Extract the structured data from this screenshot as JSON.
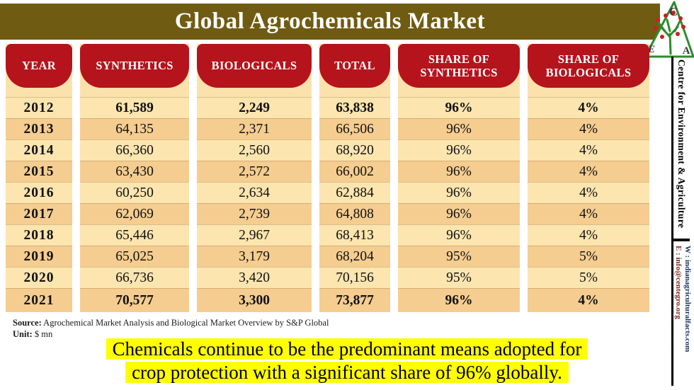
{
  "title": "Global Agrochemicals Market",
  "logo": {
    "letters": [
      "C",
      "E",
      "A"
    ]
  },
  "sidebar": {
    "org": "Centre for Environment & Agriculture",
    "email": "E : info@centegro.org",
    "web": "W : indianagriculturalfacts.com"
  },
  "chart_data": {
    "type": "table",
    "title": "Global Agrochemicals Market",
    "unit": "$ mn",
    "columns": [
      "YEAR",
      "SYNTHETICS",
      "BIOLOGICALS",
      "TOTAL",
      "SHARE OF SYNTHETICS",
      "SHARE OF BIOLOGICALS"
    ],
    "rows": [
      [
        "2012",
        "61,589",
        "2,249",
        "63,838",
        "96%",
        "4%"
      ],
      [
        "2013",
        "64,135",
        "2,371",
        "66,506",
        "96%",
        "4%"
      ],
      [
        "2014",
        "66,360",
        "2,560",
        "68,920",
        "96%",
        "4%"
      ],
      [
        "2015",
        "63,430",
        "2,572",
        "66,002",
        "96%",
        "4%"
      ],
      [
        "2016",
        "60,250",
        "2,634",
        "62,884",
        "96%",
        "4%"
      ],
      [
        "2017",
        "62,069",
        "2,739",
        "64,808",
        "96%",
        "4%"
      ],
      [
        "2018",
        "65,446",
        "2,967",
        "68,413",
        "96%",
        "4%"
      ],
      [
        "2019",
        "65,025",
        "3,179",
        "68,204",
        "95%",
        "5%"
      ],
      [
        "2020",
        "66,736",
        "3,420",
        "70,156",
        "95%",
        "5%"
      ],
      [
        "2021",
        "70,577",
        "3,300",
        "73,877",
        "96%",
        "4%"
      ]
    ],
    "bold_row_indices": [
      0,
      9
    ]
  },
  "source": {
    "label": "Source:",
    "text": " Agrochemical Market Analysis and Biological Market Overview by S&P Global",
    "unit_label": "Unit:",
    "unit_text": " $ mn"
  },
  "note": {
    "lines": [
      "Chemicals continue to be the predominant means adopted for",
      "crop protection with a significant share of 96% globally."
    ]
  },
  "colors": {
    "title_bar": "#6f5b12",
    "header_cell": "#b5141c",
    "panel_bg": "#fbe2ad",
    "row_light": "#fce5af",
    "row_dark": "#f5cd90",
    "highlight": "#ffff00",
    "email_text": "#7b2d26",
    "web_text": "#1f3864",
    "logo_green": "#2e8b2e",
    "logo_berry": "#cc1f1f"
  }
}
